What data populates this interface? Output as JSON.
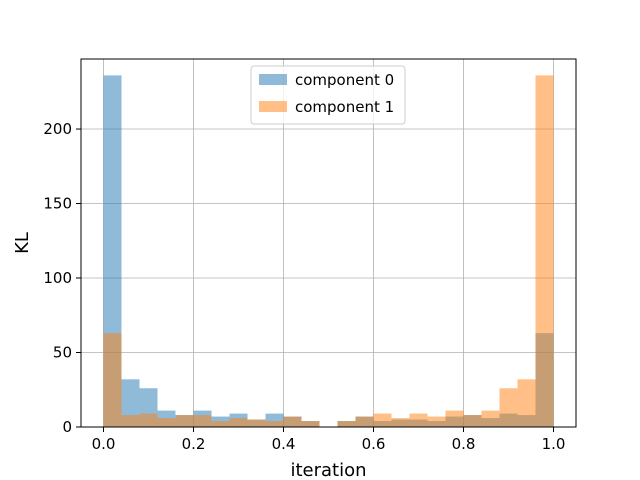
{
  "chart_data": {
    "type": "bar",
    "subtype": "overlapping-histogram",
    "title": "",
    "xlabel": "iteration",
    "ylabel": "KL",
    "xlim": [
      -0.05,
      1.05
    ],
    "ylim": [
      0,
      247
    ],
    "grid": true,
    "legend_position": "top-center",
    "x_ticks": [
      0.0,
      0.2,
      0.4,
      0.6,
      0.8,
      1.0
    ],
    "x_tick_labels": [
      "0.0",
      "0.2",
      "0.4",
      "0.6",
      "0.8",
      "1.0"
    ],
    "y_ticks": [
      0,
      50,
      100,
      150,
      200
    ],
    "y_tick_labels": [
      "0",
      "50",
      "100",
      "150",
      "200"
    ],
    "bin_start": 0.0,
    "bin_width": 0.04,
    "series": [
      {
        "name": "component 0",
        "color": "#1f77b4",
        "opacity": 0.5,
        "values": [
          236,
          32,
          26,
          11,
          8,
          11,
          7,
          9,
          5,
          9,
          7,
          4,
          0,
          4,
          7,
          4,
          5,
          5,
          4,
          7,
          8,
          6,
          9,
          8,
          63
        ]
      },
      {
        "name": "component 1",
        "color": "#ff7f0e",
        "opacity": 0.5,
        "values": [
          63,
          8,
          9,
          6,
          8,
          8,
          4,
          6,
          5,
          4,
          7,
          4,
          0,
          4,
          7,
          9,
          6,
          9,
          7,
          11,
          8,
          11,
          26,
          32,
          236
        ]
      }
    ]
  }
}
